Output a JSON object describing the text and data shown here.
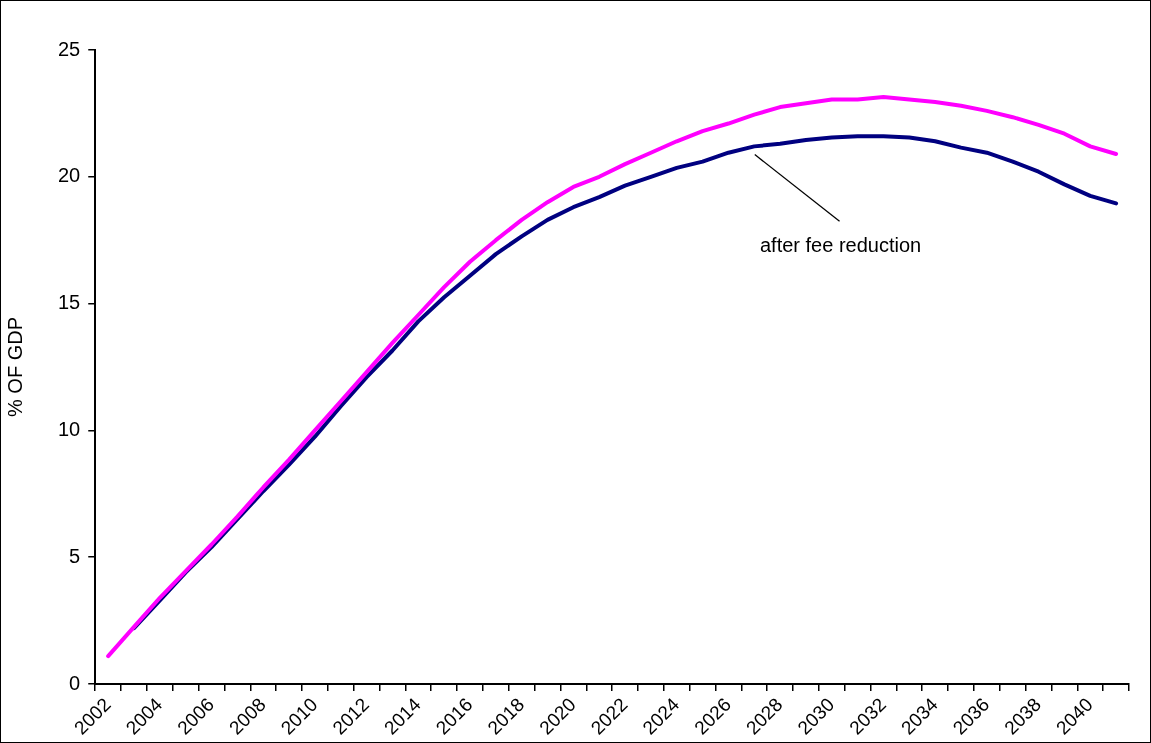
{
  "chart_data": {
    "type": "line",
    "ylabel": "% OF GDP",
    "categories": [
      "2002",
      null,
      "2004",
      null,
      "2006",
      null,
      "2008",
      null,
      "2010",
      null,
      "2012",
      null,
      "2014",
      null,
      "2016",
      null,
      "2018",
      null,
      "2020",
      null,
      "2022",
      null,
      "2024",
      null,
      "2026",
      null,
      "2028",
      null,
      "2030",
      null,
      "2032",
      null,
      "2034",
      null,
      "2036",
      null,
      "2038",
      null,
      "2040",
      null
    ],
    "series": [
      {
        "color": "#ff00ff",
        "values": [
          1.1,
          2.25,
          3.4,
          4.45,
          5.5,
          6.6,
          7.75,
          8.85,
          10.0,
          11.15,
          12.3,
          13.45,
          14.55,
          15.65,
          16.65,
          17.5,
          18.3,
          19.0,
          19.6,
          20.0,
          20.5,
          20.95,
          21.4,
          21.8,
          22.1,
          22.45,
          22.75,
          22.9,
          23.05,
          23.05,
          23.15,
          23.05,
          22.95,
          22.8,
          22.6,
          22.35,
          22.05,
          21.7,
          21.2,
          20.9
        ]
      },
      {
        "color": "#000080",
        "values": [
          null,
          2.2,
          3.3,
          4.4,
          5.4,
          6.5,
          7.6,
          8.65,
          9.75,
          10.95,
          12.1,
          13.15,
          14.3,
          15.25,
          16.1,
          16.95,
          17.65,
          18.3,
          18.8,
          19.2,
          19.65,
          20.0,
          20.35,
          20.6,
          20.95,
          21.2,
          21.3,
          21.45,
          21.55,
          21.6,
          21.6,
          21.55,
          21.4,
          21.15,
          20.95,
          20.6,
          20.2,
          19.7,
          19.25,
          18.95
        ]
      }
    ],
    "annotations": [
      "after fee reduction"
    ],
    "ylim": [
      0,
      25
    ],
    "yticks": [
      0,
      5,
      10,
      15,
      20,
      25
    ],
    "grid": false,
    "legend": false,
    "marker": "none",
    "line_style": "solid"
  }
}
